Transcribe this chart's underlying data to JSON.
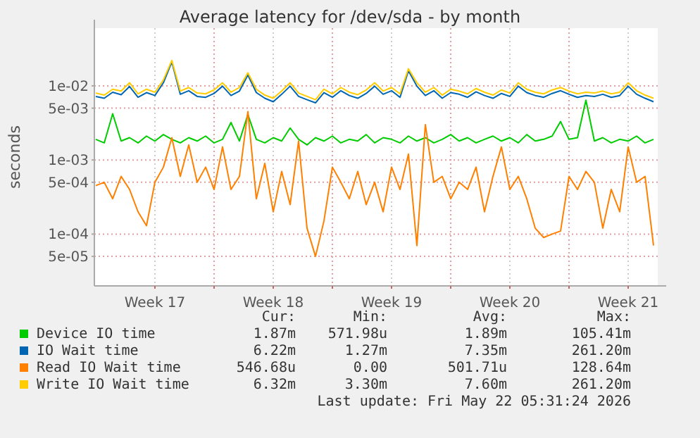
{
  "chart_data": {
    "type": "line",
    "title": "Average latency for /dev/sda - by month",
    "ylabel": "seconds",
    "log": "y",
    "grid": true,
    "legend": "bottom",
    "marker": "none",
    "line_style": "solid",
    "xlim": [
      "2026-04-19T22:00",
      "2026-05-23T06:00"
    ],
    "xticks": [
      {
        "value": "2026-04-23T12:00",
        "label": "Week 17"
      },
      {
        "value": "2026-04-27",
        "label": null
      },
      {
        "value": "2026-04-30T12:00",
        "label": "Week 18"
      },
      {
        "value": "2026-05-04",
        "label": null
      },
      {
        "value": "2026-05-07T12:00",
        "label": "Week 19"
      },
      {
        "value": "2026-05-11",
        "label": null
      },
      {
        "value": "2026-05-14T12:00",
        "label": "Week 20"
      },
      {
        "value": "2026-05-18",
        "label": null
      },
      {
        "value": "2026-05-21T12:00",
        "label": "Week 21"
      }
    ],
    "ylim": [
      2e-05,
      0.06
    ],
    "yticks": [
      {
        "value": 5e-05,
        "label": "5e-05"
      },
      {
        "value": 0.0001,
        "label": "1e-04"
      },
      {
        "value": 0.0005,
        "label": "5e-04"
      },
      {
        "value": 0.001,
        "label": "1e-03"
      },
      {
        "value": 0.005,
        "label": "5e-03"
      },
      {
        "value": 0.01,
        "label": "1e-02"
      }
    ],
    "x": [
      "2026-04-20T00:00",
      "2026-04-20T12:00",
      "2026-04-21T00:00",
      "2026-04-21T12:00",
      "2026-04-22T00:00",
      "2026-04-22T12:00",
      "2026-04-23T00:00",
      "2026-04-23T12:00",
      "2026-04-24T00:00",
      "2026-04-24T12:00",
      "2026-04-25T00:00",
      "2026-04-25T12:00",
      "2026-04-26T00:00",
      "2026-04-26T12:00",
      "2026-04-27T00:00",
      "2026-04-27T12:00",
      "2026-04-28T00:00",
      "2026-04-28T12:00",
      "2026-04-29T00:00",
      "2026-04-29T12:00",
      "2026-04-30T00:00",
      "2026-04-30T12:00",
      "2026-05-01T00:00",
      "2026-05-01T12:00",
      "2026-05-02T00:00",
      "2026-05-02T12:00",
      "2026-05-03T00:00",
      "2026-05-03T12:00",
      "2026-05-04T00:00",
      "2026-05-04T12:00",
      "2026-05-05T00:00",
      "2026-05-05T12:00",
      "2026-05-06T00:00",
      "2026-05-06T12:00",
      "2026-05-07T00:00",
      "2026-05-07T12:00",
      "2026-05-08T00:00",
      "2026-05-08T12:00",
      "2026-05-09T00:00",
      "2026-05-09T12:00",
      "2026-05-10T00:00",
      "2026-05-10T12:00",
      "2026-05-11T00:00",
      "2026-05-11T12:00",
      "2026-05-12T00:00",
      "2026-05-12T12:00",
      "2026-05-13T00:00",
      "2026-05-13T12:00",
      "2026-05-14T00:00",
      "2026-05-14T12:00",
      "2026-05-15T00:00",
      "2026-05-15T12:00",
      "2026-05-16T00:00",
      "2026-05-16T12:00",
      "2026-05-17T00:00",
      "2026-05-17T12:00",
      "2026-05-18T00:00",
      "2026-05-18T12:00",
      "2026-05-19T00:00",
      "2026-05-19T12:00",
      "2026-05-20T00:00",
      "2026-05-20T12:00",
      "2026-05-21T00:00",
      "2026-05-21T12:00",
      "2026-05-22T00:00",
      "2026-05-22T12:00",
      "2026-05-23T00:00"
    ],
    "series": [
      {
        "name": "Device IO time",
        "color": "#00cc00",
        "values": [
          0.0019,
          0.0017,
          0.0042,
          0.0018,
          0.002,
          0.0017,
          0.0021,
          0.0018,
          0.0022,
          0.0019,
          0.0017,
          0.002,
          0.0018,
          0.0021,
          0.0017,
          0.0019,
          0.0032,
          0.0018,
          0.0041,
          0.0019,
          0.0017,
          0.002,
          0.0018,
          0.0027,
          0.0019,
          0.0016,
          0.002,
          0.0018,
          0.0021,
          0.0017,
          0.0019,
          0.0018,
          0.0022,
          0.0017,
          0.002,
          0.0019,
          0.0017,
          0.0021,
          0.0018,
          0.002,
          0.0017,
          0.0019,
          0.0022,
          0.0018,
          0.002,
          0.0017,
          0.0019,
          0.0021,
          0.0018,
          0.002,
          0.0017,
          0.0022,
          0.0018,
          0.0019,
          0.0021,
          0.0033,
          0.0019,
          0.002,
          0.0064,
          0.0018,
          0.002,
          0.0017,
          0.0019,
          0.0018,
          0.0021,
          0.0017,
          0.0019
        ]
      },
      {
        "name": "IO Wait time",
        "color": "#0066b3",
        "values": [
          0.0072,
          0.0068,
          0.0082,
          0.0076,
          0.0098,
          0.007,
          0.0081,
          0.0074,
          0.011,
          0.021,
          0.0077,
          0.0086,
          0.0072,
          0.007,
          0.0079,
          0.0099,
          0.0074,
          0.0085,
          0.014,
          0.0081,
          0.0068,
          0.0061,
          0.0077,
          0.0099,
          0.0072,
          0.0065,
          0.0059,
          0.0081,
          0.007,
          0.0086,
          0.0074,
          0.0068,
          0.0079,
          0.0099,
          0.0077,
          0.0086,
          0.007,
          0.016,
          0.0099,
          0.0074,
          0.0086,
          0.0068,
          0.0081,
          0.0077,
          0.007,
          0.0083,
          0.0074,
          0.0068,
          0.0079,
          0.0072,
          0.0099,
          0.0081,
          0.0074,
          0.007,
          0.0079,
          0.0086,
          0.0077,
          0.007,
          0.0074,
          0.0072,
          0.0077,
          0.007,
          0.0074,
          0.0099,
          0.0077,
          0.0068,
          0.0061
        ]
      },
      {
        "name": "Read IO Wait time",
        "color": "#ff8000",
        "values": [
          0.00045,
          0.0005,
          0.0003,
          0.0006,
          0.0004,
          0.0002,
          0.00013,
          0.0005,
          0.0008,
          0.002,
          0.0006,
          0.0016,
          0.0005,
          0.0008,
          0.0004,
          0.0015,
          0.0004,
          0.0006,
          0.0045,
          0.0003,
          0.0009,
          0.0002,
          0.0007,
          0.00025,
          0.0018,
          0.00012,
          5e-05,
          0.00015,
          0.0008,
          0.0005,
          0.0003,
          0.0007,
          0.00025,
          0.0005,
          0.0002,
          0.0008,
          0.0004,
          0.0012,
          7e-05,
          0.003,
          0.0005,
          0.0006,
          0.0003,
          0.0005,
          0.0004,
          0.0008,
          0.0002,
          0.0006,
          0.0015,
          0.0004,
          0.0006,
          0.0003,
          0.00012,
          9e-05,
          0.0001,
          0.00011,
          0.0006,
          0.0004,
          0.0007,
          0.0005,
          0.00012,
          0.0004,
          0.0002,
          0.0015,
          0.0005,
          0.0006,
          7e-05
        ]
      },
      {
        "name": "Write IO Wait time",
        "color": "#ffcc00",
        "values": [
          0.008,
          0.0075,
          0.009,
          0.0085,
          0.011,
          0.0078,
          0.009,
          0.0082,
          0.012,
          0.022,
          0.0085,
          0.0095,
          0.008,
          0.0078,
          0.0088,
          0.011,
          0.0082,
          0.0095,
          0.015,
          0.009,
          0.0075,
          0.0068,
          0.0085,
          0.011,
          0.008,
          0.0072,
          0.0065,
          0.009,
          0.0078,
          0.0095,
          0.0082,
          0.0076,
          0.0088,
          0.011,
          0.0085,
          0.0095,
          0.0078,
          0.017,
          0.011,
          0.0082,
          0.0095,
          0.0075,
          0.009,
          0.0085,
          0.0078,
          0.0092,
          0.0082,
          0.0075,
          0.0088,
          0.008,
          0.011,
          0.009,
          0.0082,
          0.0078,
          0.0088,
          0.0095,
          0.0085,
          0.0078,
          0.0082,
          0.008,
          0.0085,
          0.0078,
          0.0082,
          0.011,
          0.0086,
          0.0075,
          0.0068
        ]
      }
    ],
    "annotations": [
      "Cur:",
      "Min:",
      "Avg:",
      "Max:",
      "1.87m",
      "571.98u",
      "1.89m",
      "105.41m",
      "6.22m",
      "1.27m",
      "7.35m",
      "261.20m",
      "546.68u",
      "0.00",
      "501.71u",
      "128.64m",
      "6.32m",
      "3.30m",
      "7.60m",
      "261.20m",
      "Last update: Fri May 22 05:31:24 2026"
    ]
  }
}
